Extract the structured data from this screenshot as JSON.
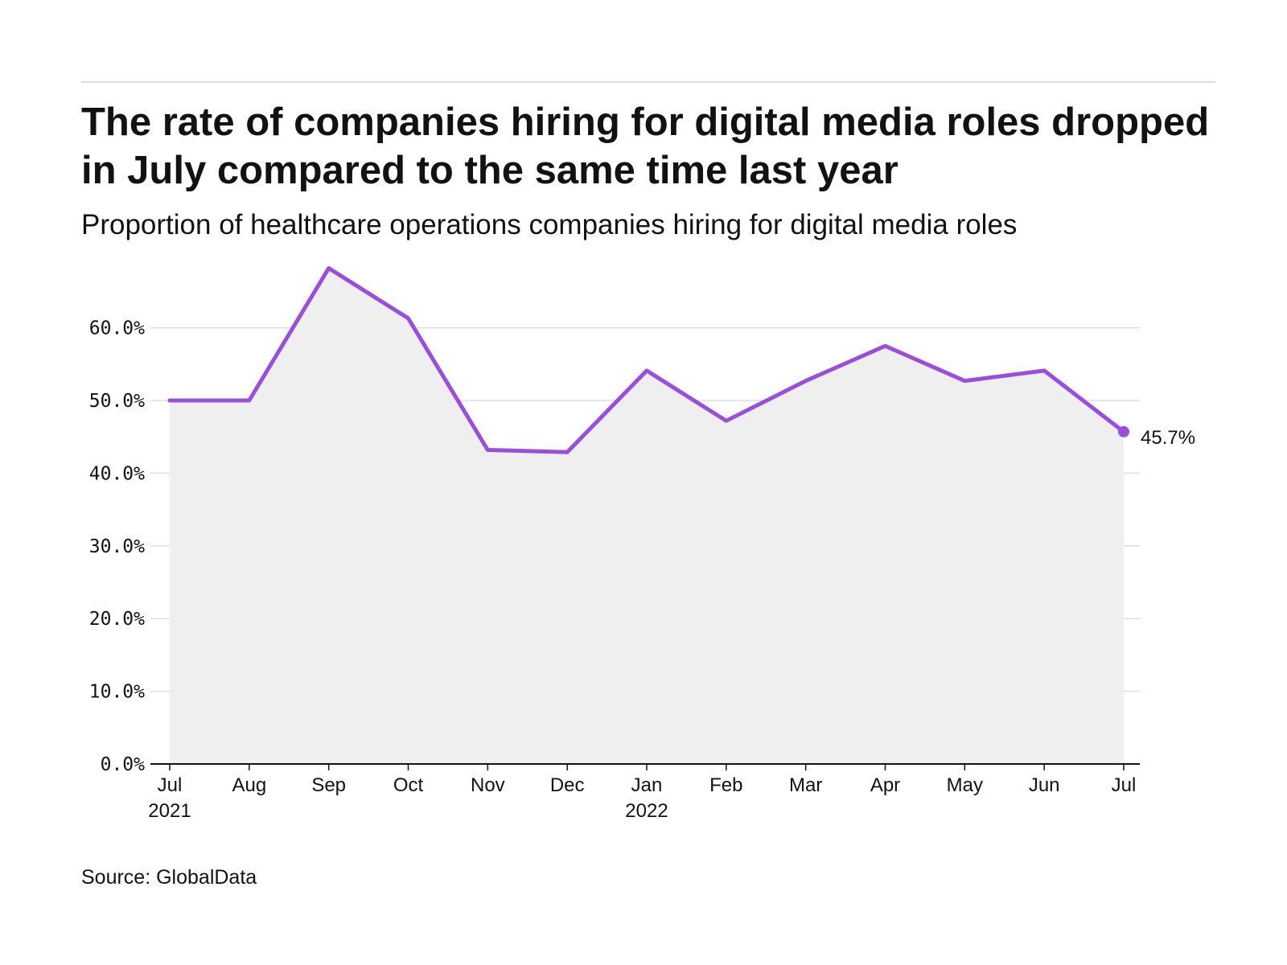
{
  "header": {
    "title": "The rate of companies hiring for digital media roles dropped in July compared to the same time last year",
    "subtitle": "Proportion of healthcare operations companies hiring for digital media roles"
  },
  "footer": {
    "source": "Source: GlobalData"
  },
  "colors": {
    "line": "#9b4ddb",
    "area": "#efefef",
    "grid": "#dedede",
    "axis": "#121212"
  },
  "chart_data": {
    "type": "area",
    "title": "The rate of companies hiring for digital media roles dropped in July compared to the same time last year",
    "subtitle": "Proportion of healthcare operations companies hiring for digital media roles",
    "xlabel": "",
    "ylabel": "",
    "x": [
      "Jul 2021",
      "Aug 2021",
      "Sep 2021",
      "Oct 2021",
      "Nov 2021",
      "Dec 2021",
      "Jan 2022",
      "Feb 2022",
      "Mar 2022",
      "Apr 2022",
      "May 2022",
      "Jun 2022",
      "Jul 2022"
    ],
    "x_tick_labels": [
      {
        "month": "Jul",
        "year": "2021"
      },
      {
        "month": "Aug",
        "year": ""
      },
      {
        "month": "Sep",
        "year": ""
      },
      {
        "month": "Oct",
        "year": ""
      },
      {
        "month": "Nov",
        "year": ""
      },
      {
        "month": "Dec",
        "year": ""
      },
      {
        "month": "Jan",
        "year": "2022"
      },
      {
        "month": "Feb",
        "year": ""
      },
      {
        "month": "Mar",
        "year": ""
      },
      {
        "month": "Apr",
        "year": ""
      },
      {
        "month": "May",
        "year": ""
      },
      {
        "month": "Jun",
        "year": ""
      },
      {
        "month": "Jul",
        "year": ""
      }
    ],
    "series": [
      {
        "values": [
          50.0,
          50.0,
          68.2,
          61.3,
          43.2,
          42.9,
          54.1,
          47.2,
          52.7,
          57.5,
          52.7,
          54.1,
          45.7
        ]
      }
    ],
    "end_label": "45.7%",
    "ylim": [
      0,
      68.2
    ],
    "yticks": [
      0,
      10,
      20,
      30,
      40,
      50,
      60
    ],
    "ytick_labels": [
      "0.0%",
      "10.0%",
      "20.0%",
      "30.0%",
      "40.0%",
      "50.0%",
      "60.0%"
    ],
    "grid": true,
    "legend": "none"
  }
}
